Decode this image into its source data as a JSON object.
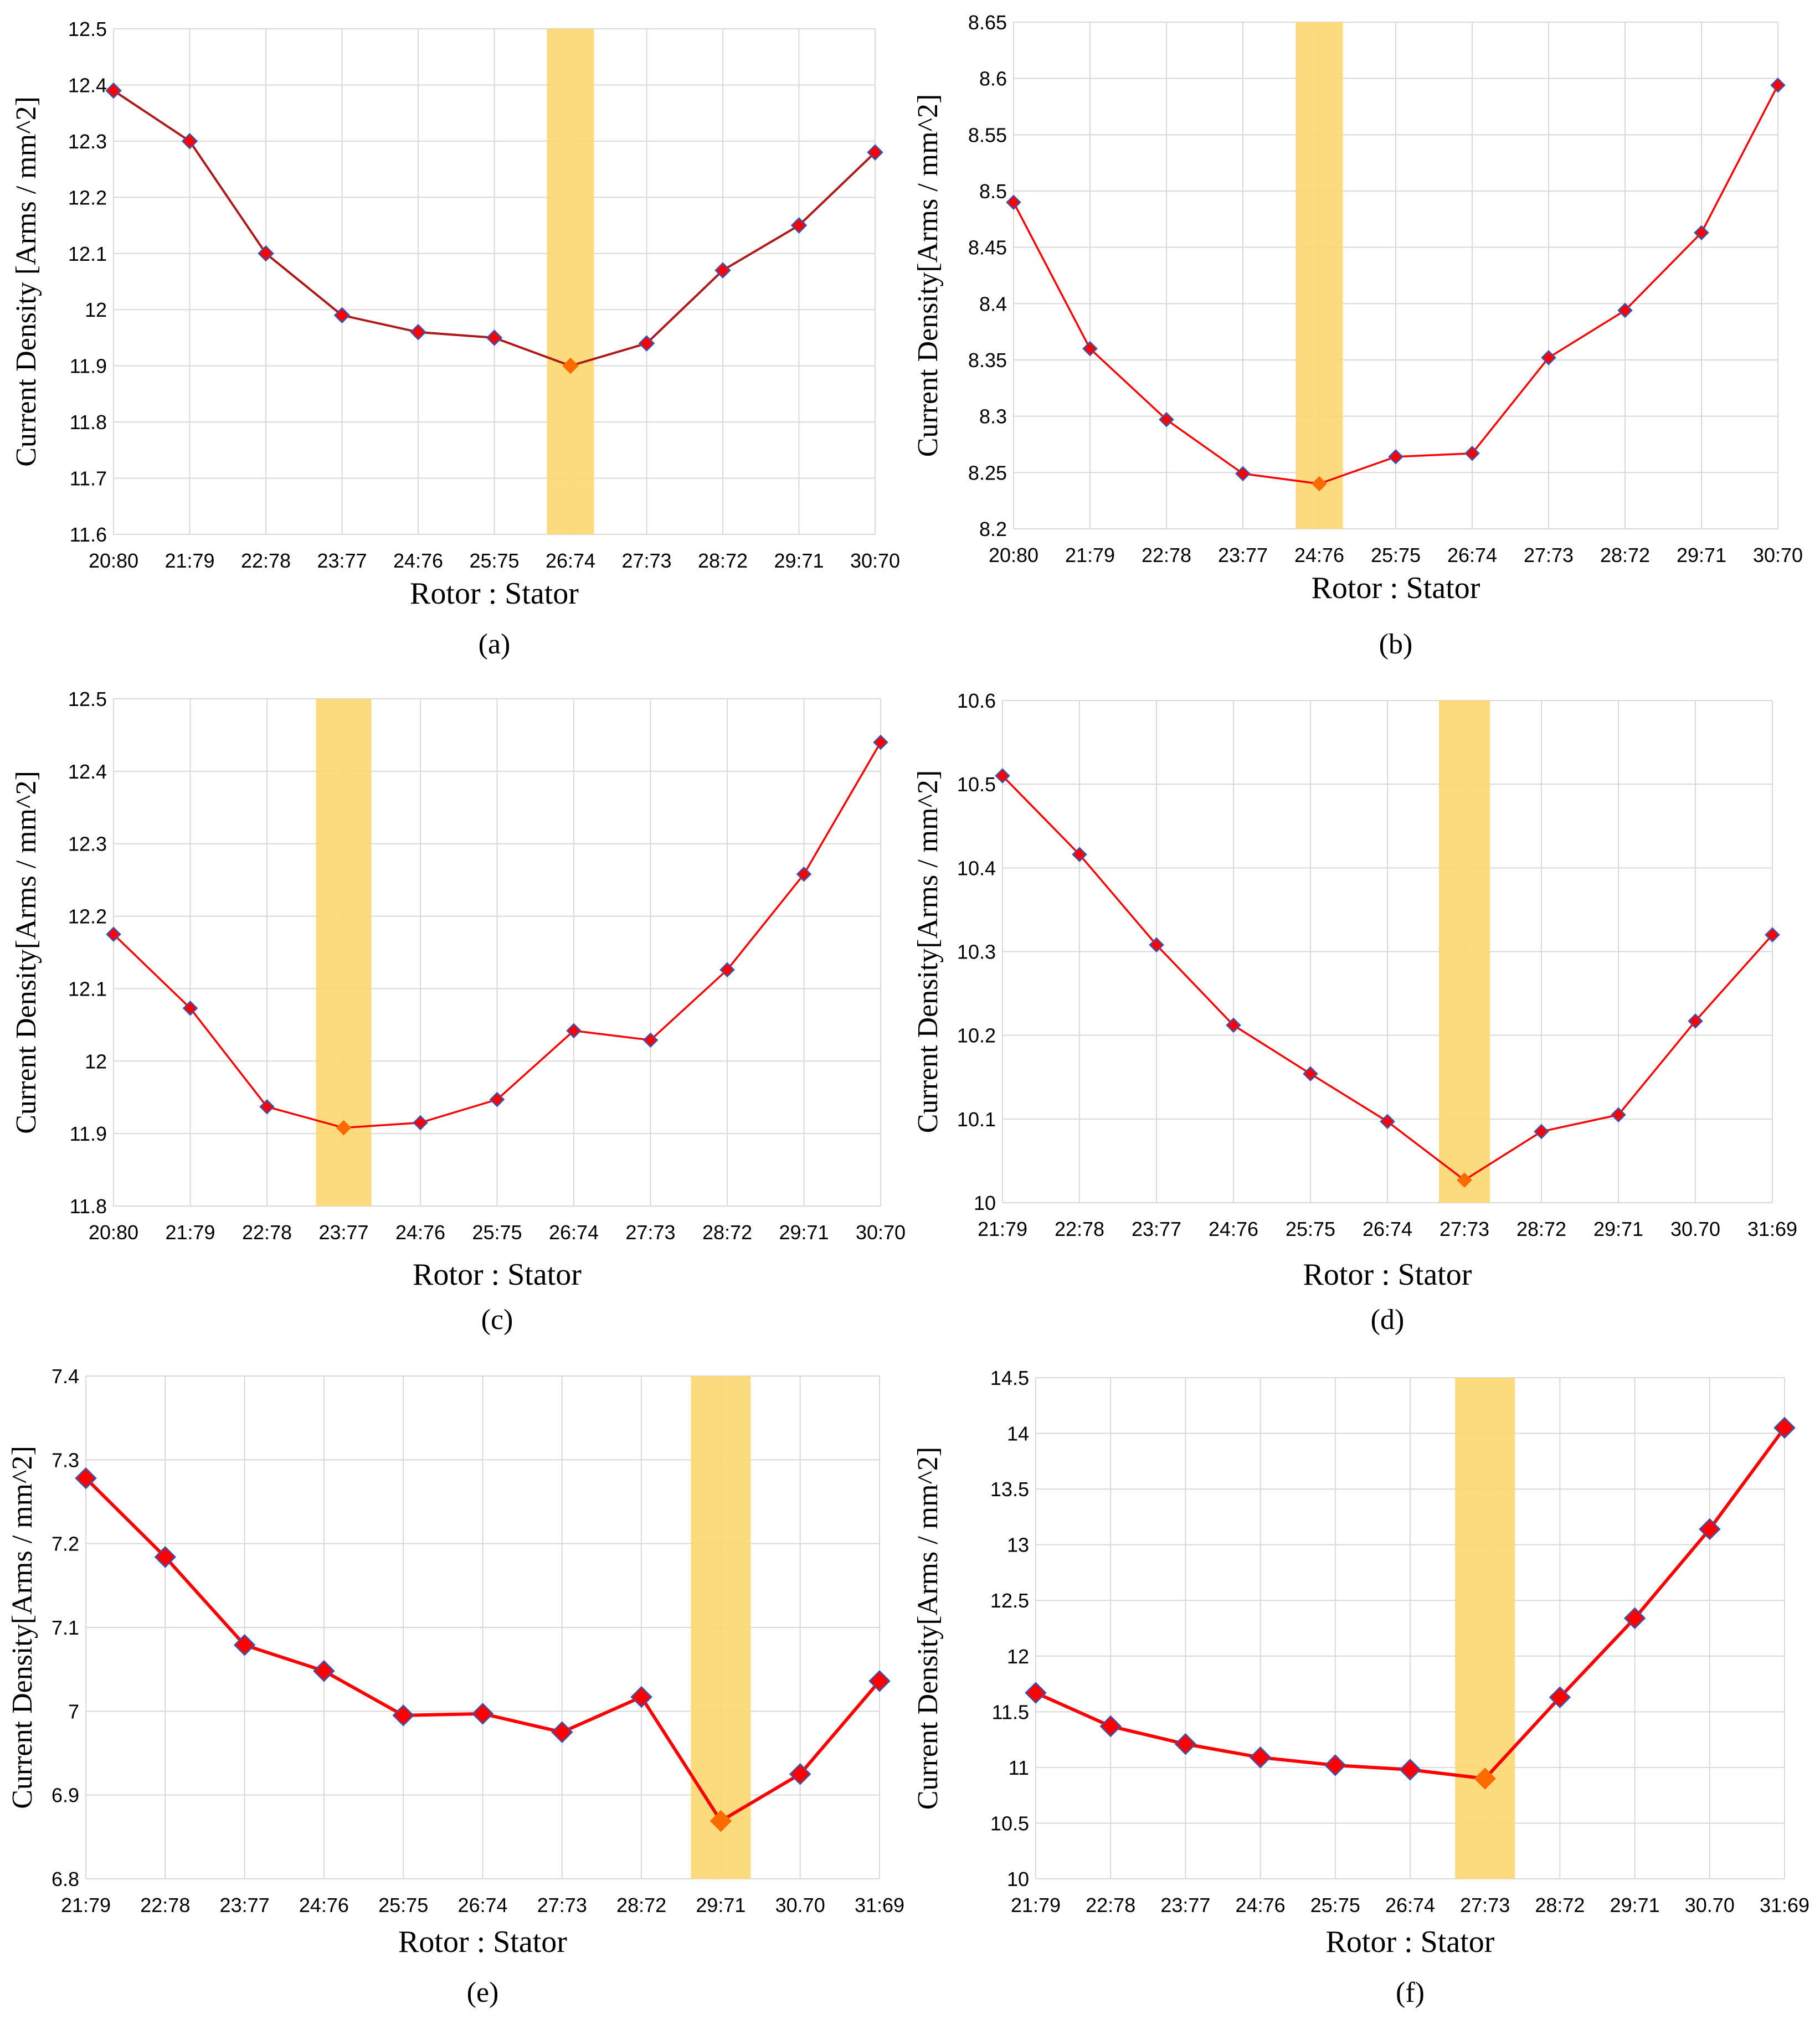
{
  "colors": {
    "line": "#ff0000",
    "line_dark": "#b01818",
    "marker_fill": "#ff0000",
    "marker_stroke": "#3a52b0",
    "highlight_marker": "#ff6a00",
    "highlight_band": "#fcd670",
    "grid": "#d9d9d9",
    "text": "#000000"
  },
  "chart_data": [
    {
      "type": "line",
      "caption": "(a)",
      "ylabel": "Current Density [Arms / mm^2]",
      "xlabel": "Rotor : Stator",
      "categories": [
        "20:80",
        "21:79",
        "22:78",
        "23:77",
        "24:76",
        "25:75",
        "26:74",
        "27:73",
        "28:72",
        "29:71",
        "30:70"
      ],
      "yticks": [
        "11.6",
        "11.7",
        "11.8",
        "11.9",
        "12",
        "12.1",
        "12.2",
        "12.3",
        "12.4",
        "12.5"
      ],
      "ylim": [
        11.6,
        12.5
      ],
      "grid": true,
      "series": [
        {
          "name": "Current Density",
          "values": [
            12.39,
            12.3,
            12.1,
            11.99,
            11.96,
            11.95,
            11.9,
            11.94,
            12.07,
            12.15,
            12.28
          ]
        }
      ],
      "highlight_category": "26:74"
    },
    {
      "type": "line",
      "caption": "(b)",
      "ylabel": "Current Density[Arms / mm^2]",
      "xlabel": "Rotor : Stator",
      "categories": [
        "20:80",
        "21:79",
        "22:78",
        "23:77",
        "24:76",
        "25:75",
        "26:74",
        "27:73",
        "28:72",
        "29:71",
        "30:70"
      ],
      "yticks": [
        "8.2",
        "8.25",
        "8.3",
        "8.35",
        "8.4",
        "8.45",
        "8.5",
        "8.55",
        "8.6",
        "8.65"
      ],
      "ylim": [
        8.2,
        8.65
      ],
      "grid": true,
      "series": [
        {
          "name": "Current Density",
          "values": [
            8.49,
            8.36,
            8.297,
            8.249,
            8.24,
            8.264,
            8.267,
            8.352,
            8.394,
            8.463,
            8.594
          ]
        }
      ],
      "highlight_category": "24:76"
    },
    {
      "type": "line",
      "caption": "(c)",
      "ylabel": "Current Density[Arms / mm^2]",
      "xlabel": "Rotor : Stator",
      "categories": [
        "20:80",
        "21:79",
        "22:78",
        "23:77",
        "24:76",
        "25:75",
        "26:74",
        "27:73",
        "28:72",
        "29:71",
        "30:70"
      ],
      "yticks": [
        "11.8",
        "11.9",
        "12",
        "12.1",
        "12.2",
        "12.3",
        "12.4",
        "12.5"
      ],
      "ylim": [
        11.8,
        12.5
      ],
      "grid": true,
      "series": [
        {
          "name": "Current Density",
          "values": [
            12.175,
            12.073,
            11.937,
            11.908,
            11.915,
            11.947,
            12.042,
            12.029,
            12.126,
            12.258,
            12.44
          ]
        }
      ],
      "highlight_category": "23:77"
    },
    {
      "type": "line",
      "caption": "(d)",
      "ylabel": "Current Density[Arms / mm^2]",
      "xlabel": "Rotor : Stator",
      "categories": [
        "21:79",
        "22:78",
        "23:77",
        "24:76",
        "25:75",
        "26:74",
        "27:73",
        "28:72",
        "29:71",
        "30.70",
        "31:69"
      ],
      "yticks": [
        "10",
        "10.1",
        "10.2",
        "10.3",
        "10.4",
        "10.5",
        "10.6"
      ],
      "ylim": [
        10,
        10.6
      ],
      "grid": true,
      "series": [
        {
          "name": "Current Density",
          "values": [
            10.51,
            10.416,
            10.308,
            10.212,
            10.154,
            10.097,
            10.027,
            10.085,
            10.105,
            10.217,
            10.32
          ]
        }
      ],
      "highlight_category": "27:73"
    },
    {
      "type": "line",
      "caption": "(e)",
      "ylabel": "Current Density[Arms / mm^2]",
      "xlabel": "Rotor : Stator",
      "categories": [
        "21:79",
        "22:78",
        "23:77",
        "24:76",
        "25:75",
        "26:74",
        "27:73",
        "28:72",
        "29:71",
        "30.70",
        "31:69"
      ],
      "yticks": [
        "6.8",
        "6.9",
        "7",
        "7.1",
        "7.2",
        "7.3",
        "7.4"
      ],
      "ylim": [
        6.8,
        7.4
      ],
      "grid": true,
      "series": [
        {
          "name": "Current Density",
          "values": [
            7.278,
            7.184,
            7.079,
            7.048,
            6.995,
            6.997,
            6.975,
            7.017,
            6.869,
            6.925,
            7.036
          ]
        }
      ],
      "highlight_category": "29:71"
    },
    {
      "type": "line",
      "caption": "(f)",
      "ylabel": "Current Density[Arms / mm^2]",
      "xlabel": "Rotor : Stator",
      "categories": [
        "21:79",
        "22:78",
        "23:77",
        "24:76",
        "25:75",
        "26:74",
        "27:73",
        "28:72",
        "29:71",
        "30.70",
        "31:69"
      ],
      "yticks": [
        "10",
        "10.5",
        "11",
        "11.5",
        "12",
        "12.5",
        "13",
        "13.5",
        "14",
        "14.5"
      ],
      "ylim": [
        10,
        14.5
      ],
      "grid": true,
      "series": [
        {
          "name": "Current Density",
          "values": [
            11.67,
            11.37,
            11.21,
            11.09,
            11.02,
            10.98,
            10.9,
            11.63,
            12.34,
            13.14,
            14.05
          ]
        }
      ],
      "highlight_category": "27:73"
    }
  ]
}
